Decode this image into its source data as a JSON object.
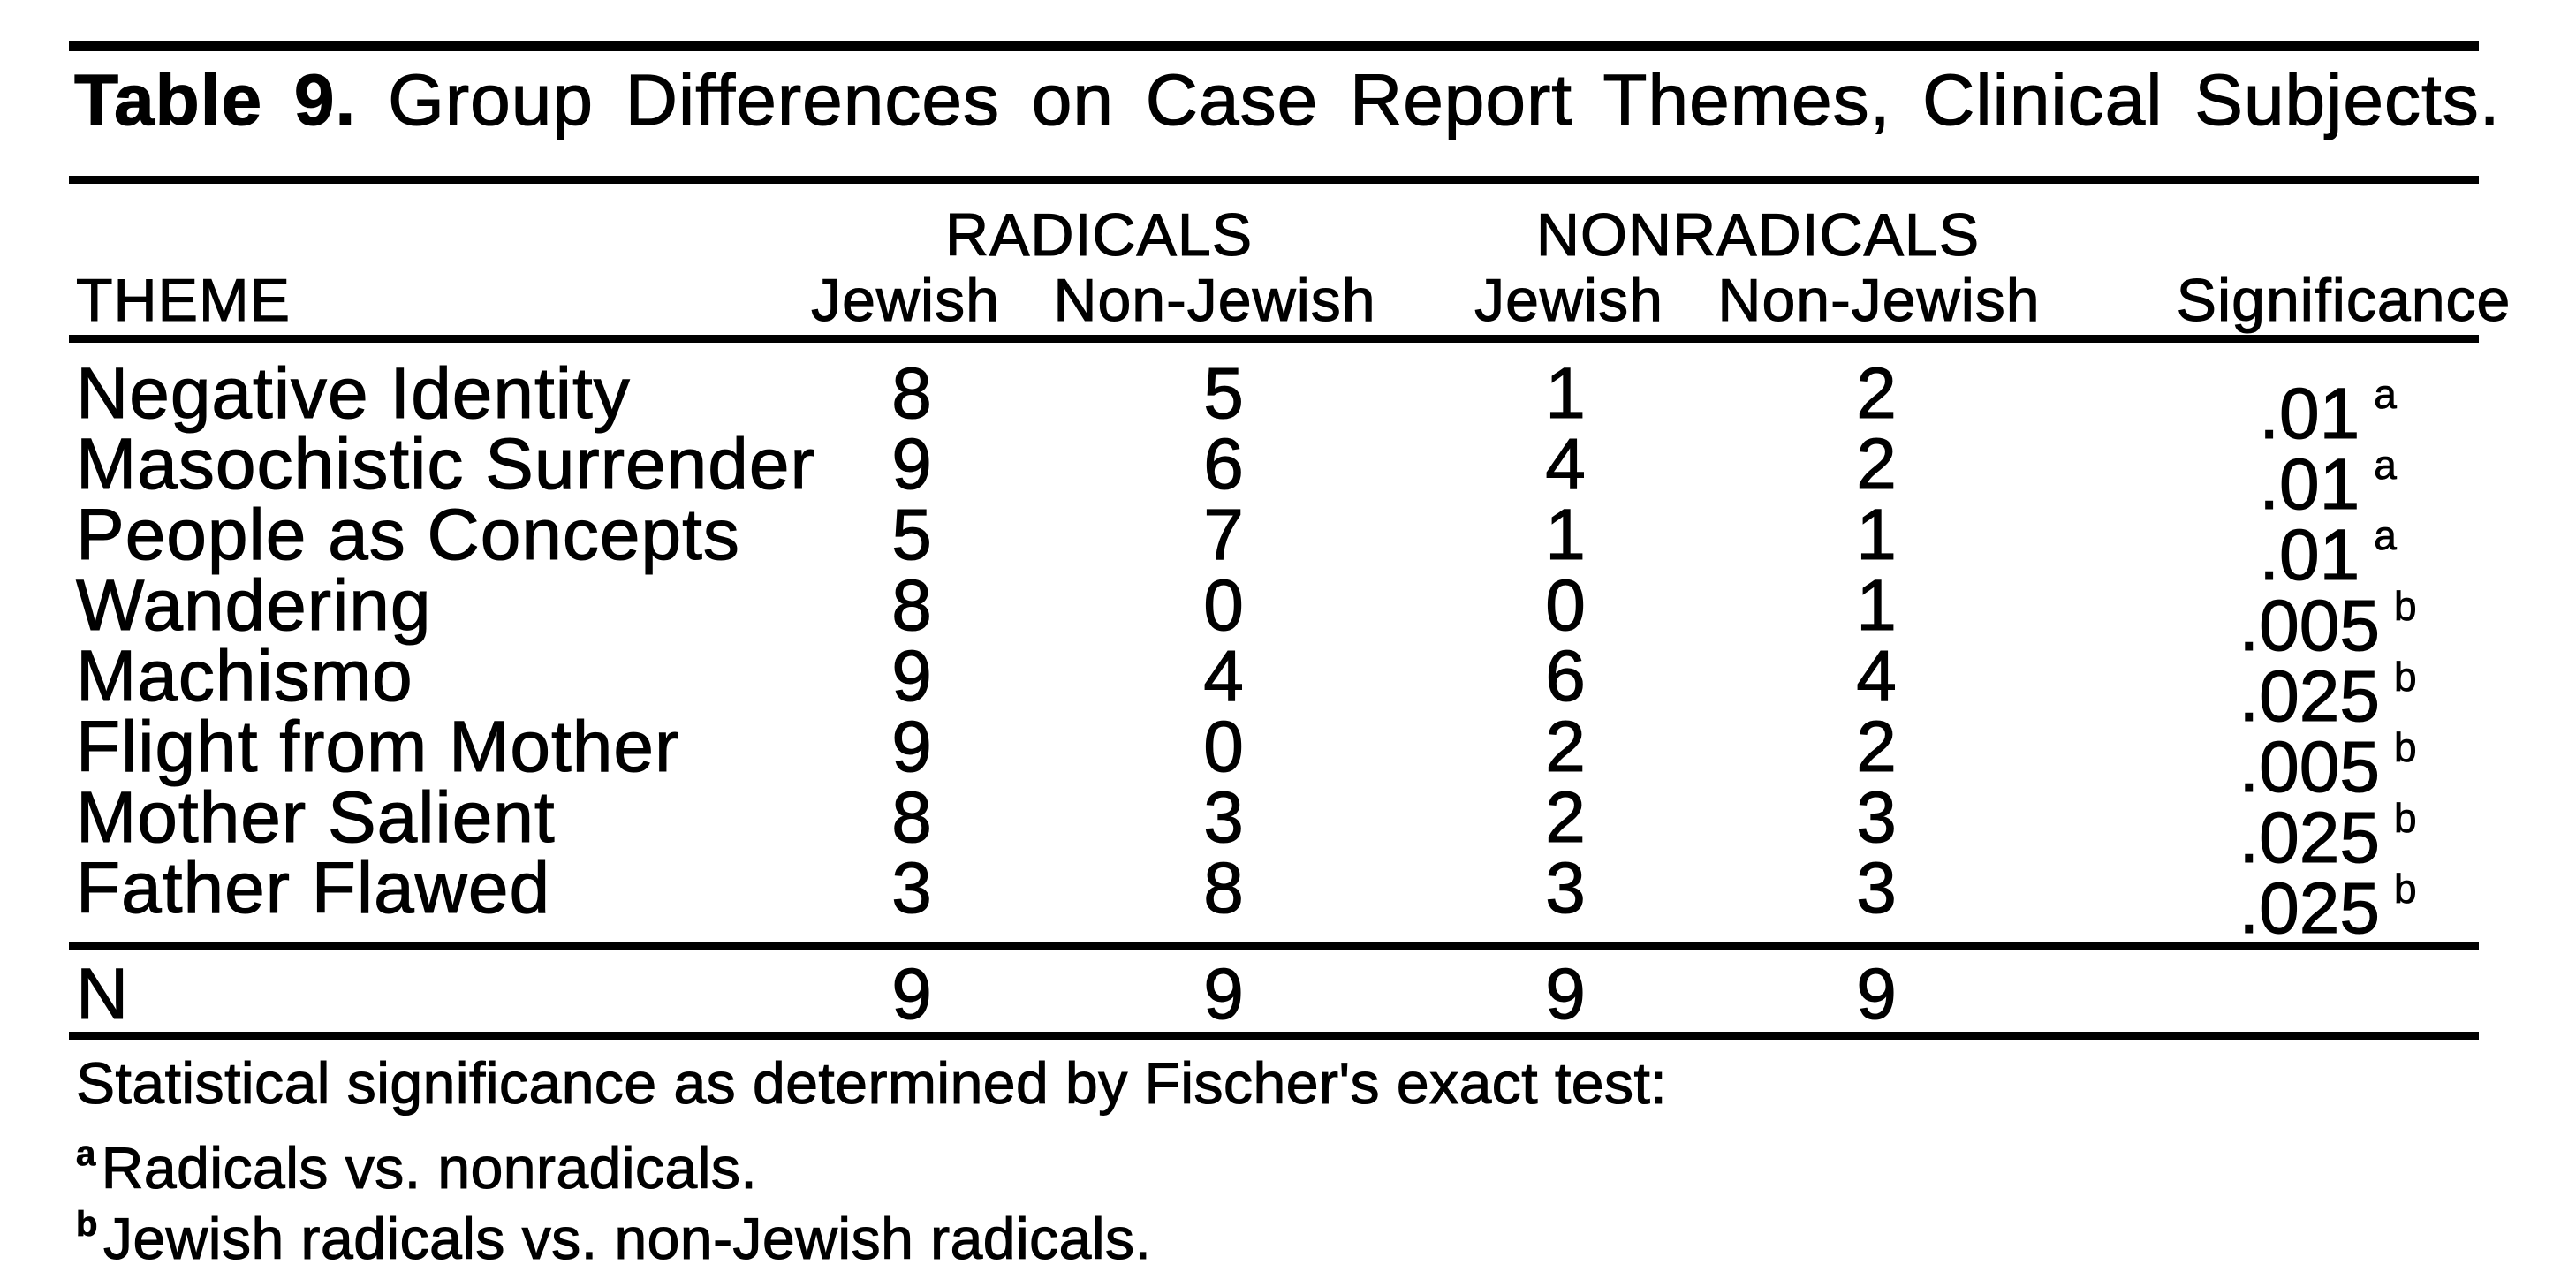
{
  "title": {
    "label": "Table 9.",
    "text": "Group Differences on Case Report Themes, Clinical Subjects."
  },
  "table": {
    "theme_header": "THEME",
    "group_headers": {
      "radicals": "RADICALS",
      "nonradicals": "NONRADICALS"
    },
    "sub_headers": {
      "radicals_jewish": "Jewish",
      "radicals_non_jewish": "Non-Jewish",
      "nonradicals_jewish": "Jewish",
      "nonradicals_non_jewish": "Non-Jewish"
    },
    "significance_header": "Significance",
    "rows": [
      {
        "theme": "Negative Identity",
        "values": [
          8,
          5,
          1,
          2
        ],
        "sig": ".01",
        "sig_mark": "a"
      },
      {
        "theme": "Masochistic Surrender",
        "values": [
          9,
          6,
          4,
          2
        ],
        "sig": ".01",
        "sig_mark": "a"
      },
      {
        "theme": "People as Concepts",
        "values": [
          5,
          7,
          1,
          1
        ],
        "sig": ".01",
        "sig_mark": "a"
      },
      {
        "theme": "Wandering",
        "values": [
          8,
          0,
          0,
          1
        ],
        "sig": ".005",
        "sig_mark": "b"
      },
      {
        "theme": "Machismo",
        "values": [
          9,
          4,
          6,
          4
        ],
        "sig": ".025",
        "sig_mark": "b"
      },
      {
        "theme": "Flight from Mother",
        "values": [
          9,
          0,
          2,
          2
        ],
        "sig": ".005",
        "sig_mark": "b"
      },
      {
        "theme": "Mother Salient",
        "values": [
          8,
          3,
          2,
          3
        ],
        "sig": ".025",
        "sig_mark": "b"
      },
      {
        "theme": "Father Flawed",
        "values": [
          3,
          8,
          3,
          3
        ],
        "sig": ".025",
        "sig_mark": "b"
      }
    ],
    "n_row": {
      "label": "N",
      "values": [
        9,
        9,
        9,
        9
      ]
    }
  },
  "footnotes": {
    "intro": "Statistical significance as determined by Fischer's exact test:",
    "notes": [
      {
        "mark": "a",
        "text": "Radicals vs. nonradicals."
      },
      {
        "mark": "b",
        "text": "Jewish radicals vs. non-Jewish radicals."
      }
    ]
  }
}
